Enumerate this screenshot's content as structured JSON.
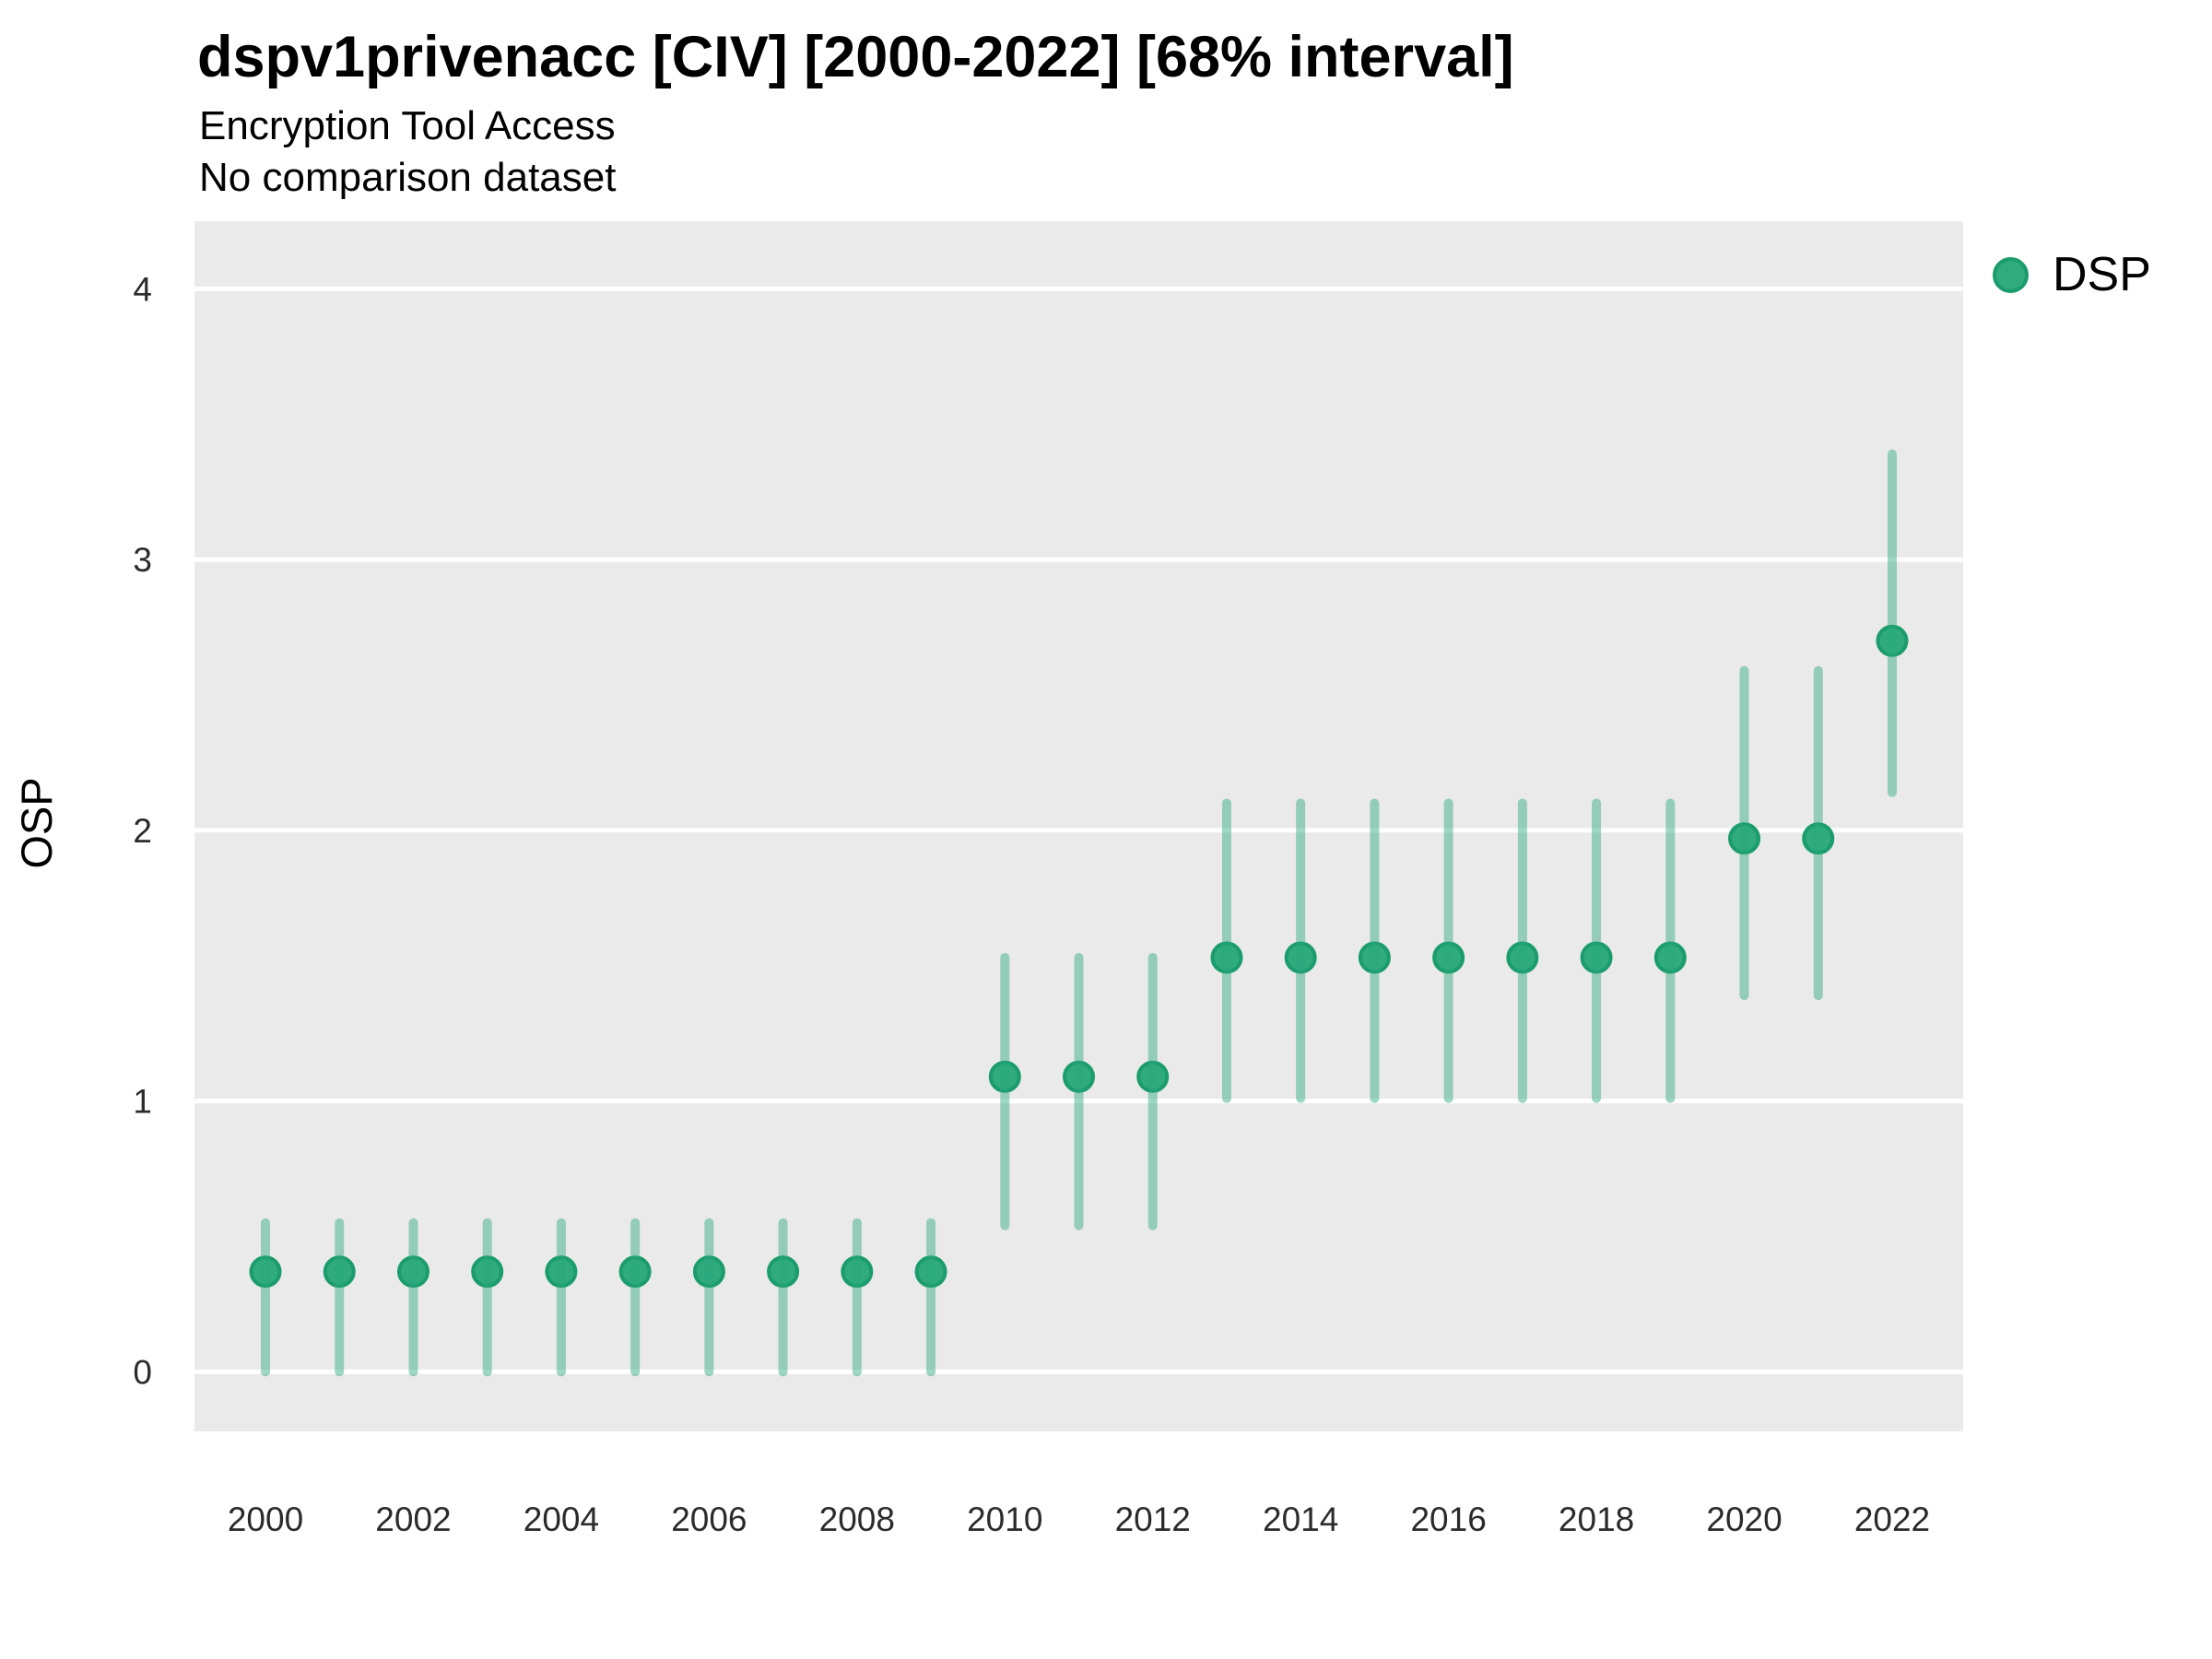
{
  "chart_data": {
    "type": "scatter",
    "subtype": "point-estimates-with-error-bars",
    "title": "dspv1privenacc [CIV] [2000-2022] [68% interval]",
    "subtitle": "Encryption Tool Access",
    "note": "No comparison dataset",
    "xlabel": "",
    "ylabel": "OSP",
    "interval_label": "68% interval",
    "legend_position": "right",
    "grid": "major-horizontal-only",
    "x_ticks": [
      2000,
      2002,
      2004,
      2006,
      2008,
      2010,
      2012,
      2014,
      2016,
      2018,
      2020,
      2022
    ],
    "y_ticks": [
      0,
      1,
      2,
      3,
      4
    ],
    "xlim": [
      1999.04,
      2022.96
    ],
    "ylim": [
      -0.22,
      4.25
    ],
    "series": [
      {
        "name": "DSP",
        "x": [
          2000,
          2001,
          2002,
          2003,
          2004,
          2005,
          2006,
          2007,
          2008,
          2009,
          2010,
          2011,
          2012,
          2013,
          2014,
          2015,
          2016,
          2017,
          2018,
          2019,
          2020,
          2021,
          2022
        ],
        "y": [
          0.37,
          0.37,
          0.37,
          0.37,
          0.37,
          0.37,
          0.37,
          0.37,
          0.37,
          0.37,
          1.09,
          1.09,
          1.09,
          1.53,
          1.53,
          1.53,
          1.53,
          1.53,
          1.53,
          1.53,
          1.97,
          1.97,
          2.7
        ],
        "y_lo": [
          0.0,
          0.0,
          0.0,
          0.0,
          0.0,
          0.0,
          0.0,
          0.0,
          0.0,
          0.0,
          0.54,
          0.54,
          0.54,
          1.01,
          1.01,
          1.01,
          1.01,
          1.01,
          1.01,
          1.01,
          1.39,
          1.39,
          2.14
        ],
        "y_hi": [
          0.55,
          0.55,
          0.55,
          0.55,
          0.55,
          0.55,
          0.55,
          0.55,
          0.55,
          0.55,
          1.53,
          1.53,
          1.53,
          2.1,
          2.1,
          2.1,
          2.1,
          2.1,
          2.1,
          2.1,
          2.59,
          2.59,
          3.39
        ]
      }
    ],
    "colors": {
      "point_fill": "#2fab7e",
      "point_stroke": "#1b9c6c",
      "interval": "#2aa87c",
      "interval_opacity": 0.45,
      "panel_bg": "#eaeaea",
      "gridline": "#ffffff",
      "tick_text": "#2b2b2b",
      "title_text": "#000000"
    }
  }
}
